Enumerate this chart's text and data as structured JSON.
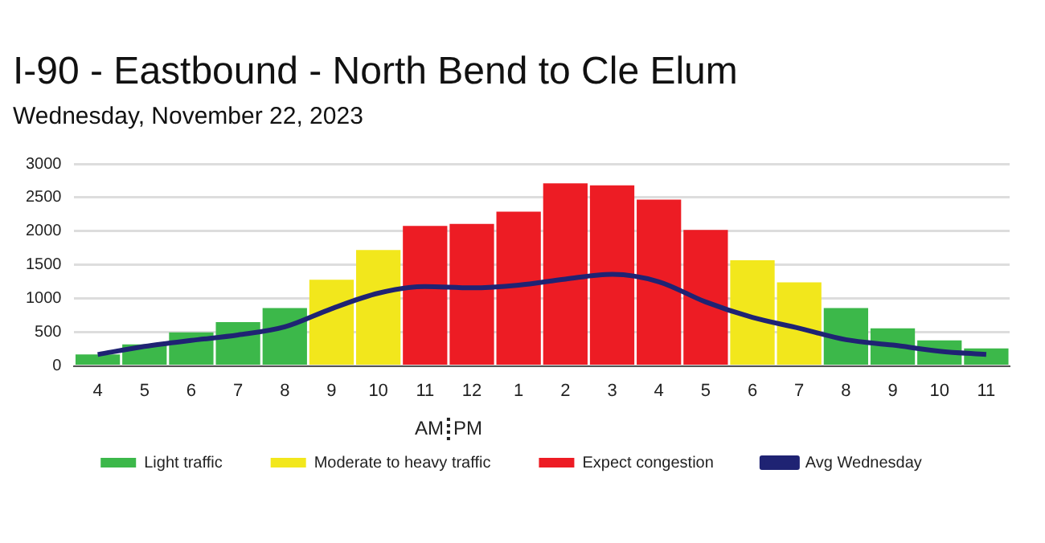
{
  "chart_data": {
    "type": "bar",
    "title": "I-90 - Eastbound - North Bend to Cle Elum",
    "subtitle": "Wednesday, November 22, 2023",
    "categories": [
      "4",
      "5",
      "6",
      "7",
      "8",
      "9",
      "10",
      "11",
      "12",
      "1",
      "2",
      "3",
      "4",
      "5",
      "6",
      "7",
      "8",
      "9",
      "10",
      "11"
    ],
    "stacked": true,
    "series": [
      {
        "name": "Light traffic",
        "color": "#3cb84a",
        "values": [
          170,
          320,
          500,
          650,
          860,
          null,
          null,
          null,
          null,
          null,
          null,
          null,
          null,
          null,
          null,
          null,
          860,
          560,
          380,
          260
        ]
      },
      {
        "name": "Moderate to heavy traffic",
        "color": "#f2e71c",
        "values": [
          null,
          null,
          null,
          null,
          null,
          1280,
          1720,
          null,
          null,
          null,
          null,
          null,
          null,
          null,
          1570,
          1240,
          null,
          null,
          null,
          null
        ]
      },
      {
        "name": "Expect congestion",
        "color": "#ed1c24",
        "values": [
          null,
          null,
          null,
          null,
          null,
          null,
          null,
          2080,
          2110,
          2290,
          2710,
          2680,
          2470,
          2020,
          null,
          null,
          null,
          null,
          null,
          null
        ]
      },
      {
        "name": "Avg Wednesday",
        "type": "line",
        "color": "#1f2373",
        "marker": "none",
        "values": [
          170,
          290,
          380,
          460,
          580,
          850,
          1080,
          1180,
          1160,
          1200,
          1290,
          1360,
          1250,
          950,
          720,
          560,
          390,
          310,
          220,
          170
        ]
      }
    ],
    "ylim": [
      0,
      3000
    ],
    "yticks": [
      0,
      500,
      1000,
      1500,
      2000,
      2500,
      3000
    ],
    "grid": "y",
    "legend": "bottom",
    "annotations": [
      "AM",
      "PM"
    ]
  }
}
